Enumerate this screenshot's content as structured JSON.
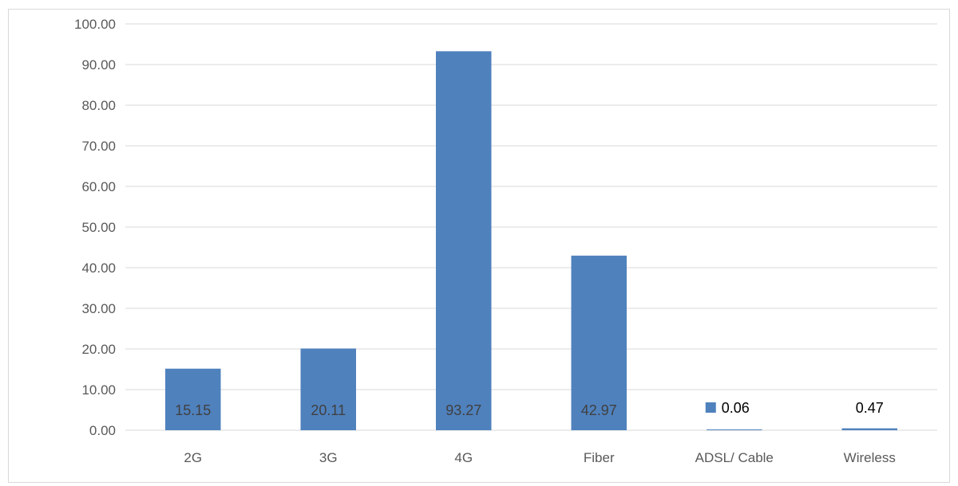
{
  "chart_data": {
    "type": "bar",
    "categories": [
      "2G",
      "3G",
      "4G",
      "Fiber",
      "ADSL/ Cable",
      "Wireless"
    ],
    "values": [
      15.15,
      20.11,
      93.27,
      42.97,
      0.06,
      0.47
    ],
    "data_labels": [
      "15.15",
      "20.11",
      "93.27",
      "42.97",
      "0.06",
      "0.47"
    ],
    "y_ticks": [
      "0.00",
      "10.00",
      "20.00",
      "30.00",
      "40.00",
      "50.00",
      "60.00",
      "70.00",
      "80.00",
      "90.00",
      "100.00"
    ],
    "ylim": [
      0,
      100
    ],
    "grid": true,
    "title": "",
    "xlabel": "",
    "ylabel": "",
    "colors": {
      "bar": "#4f81bd",
      "grid": "#d9d9d9",
      "axis_text": "#595959",
      "label_text": "#404040"
    }
  }
}
